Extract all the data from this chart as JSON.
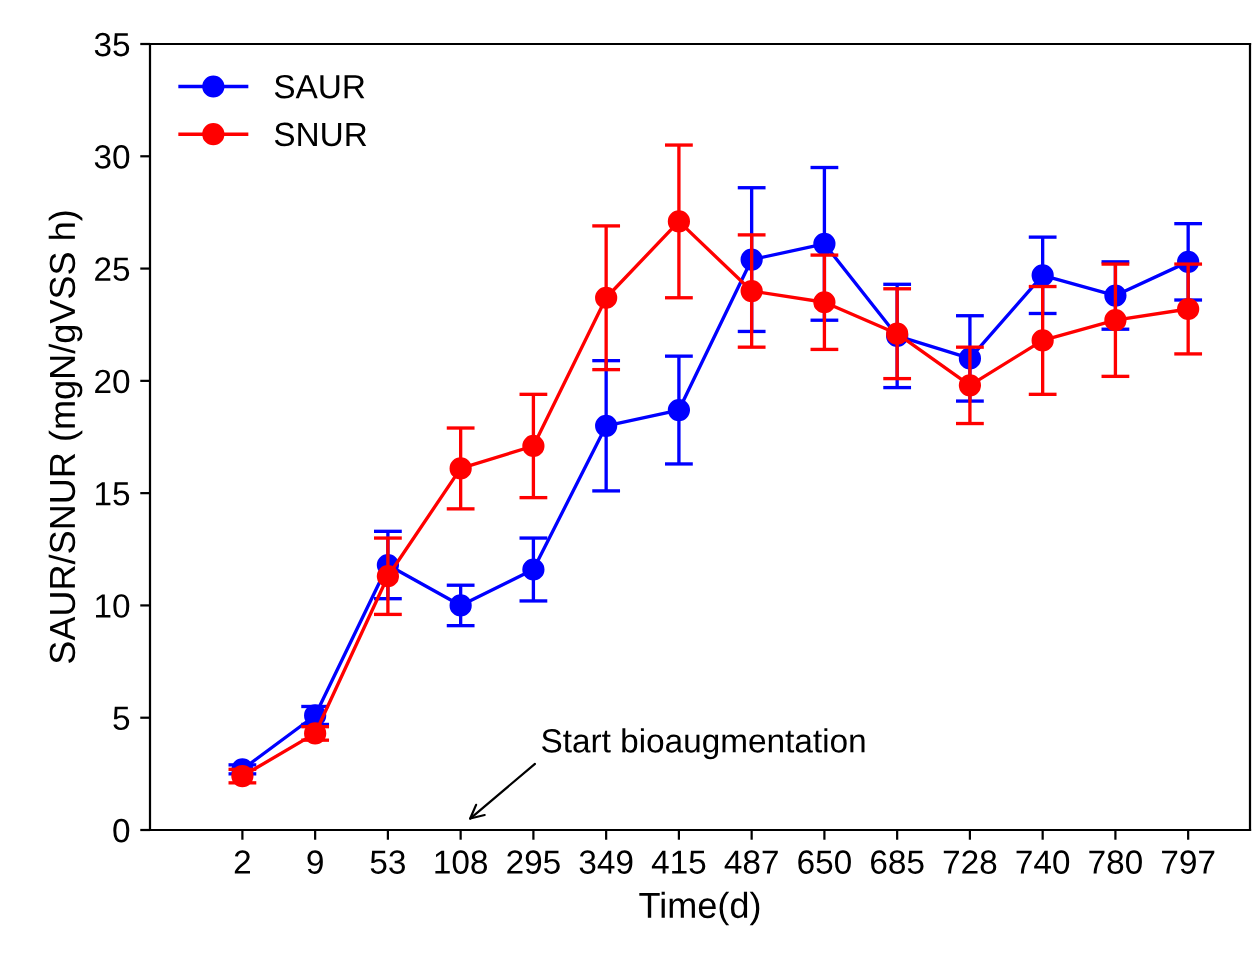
{
  "chart_data": {
    "type": "line",
    "xlabel": "Time(d)",
    "ylabel": "SAUR/SNUR (mgN/gVSS h)",
    "categories": [
      "2",
      "9",
      "53",
      "108",
      "295",
      "349",
      "415",
      "487",
      "650",
      "685",
      "728",
      "740",
      "780",
      "797"
    ],
    "series": [
      {
        "name": "SAUR",
        "color": "#0000ff",
        "values": [
          2.7,
          5.1,
          11.8,
          10.0,
          11.6,
          18.0,
          18.7,
          25.4,
          26.1,
          22.0,
          21.0,
          24.7,
          23.8,
          25.3
        ],
        "errors": [
          0.2,
          0.4,
          1.5,
          0.9,
          1.4,
          2.9,
          2.4,
          3.2,
          3.4,
          2.3,
          1.9,
          1.7,
          1.5,
          1.7
        ]
      },
      {
        "name": "SNUR",
        "color": "#ff0000",
        "values": [
          2.4,
          4.3,
          11.3,
          16.1,
          17.1,
          23.7,
          27.1,
          24.0,
          23.5,
          22.1,
          19.8,
          21.8,
          22.7,
          23.2
        ],
        "errors": [
          0.3,
          0.3,
          1.7,
          1.8,
          2.3,
          3.2,
          3.4,
          2.5,
          2.1,
          2.0,
          1.7,
          2.4,
          2.5,
          2.0
        ]
      }
    ],
    "ylim": [
      0,
      35
    ],
    "yticks": [
      0,
      5,
      10,
      15,
      20,
      25,
      30,
      35
    ],
    "annotations": [
      "Start bioaugmentation"
    ],
    "legend": "top left",
    "grid": false,
    "marker": "circle",
    "line_style": "solid"
  }
}
